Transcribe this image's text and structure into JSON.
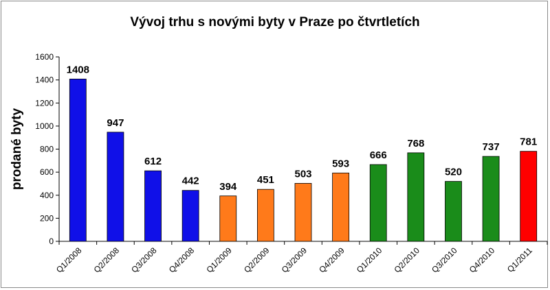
{
  "chart_data": {
    "type": "bar",
    "title": "Vývoj trhu s novými byty v Praze po čtvrtletích",
    "xlabel": "",
    "ylabel": "prodané byty",
    "ylim": [
      0,
      1600
    ],
    "yticks": [
      0,
      200,
      400,
      600,
      800,
      1000,
      1200,
      1400,
      1600
    ],
    "grid": false,
    "categories": [
      "Q1/2008",
      "Q2/2008",
      "Q3/2008",
      "Q4/2008",
      "Q1/2009",
      "Q2/2009",
      "Q3/2009",
      "Q4/2009",
      "Q1/2010",
      "Q2/2010",
      "Q3/2010",
      "Q4/2010",
      "Q1/2011"
    ],
    "values": [
      1408,
      947,
      612,
      442,
      394,
      451,
      503,
      593,
      666,
      768,
      520,
      737,
      781
    ],
    "bar_colors": [
      "#1010e8",
      "#1010e8",
      "#1010e8",
      "#1010e8",
      "#ff7a1a",
      "#ff7a1a",
      "#ff7a1a",
      "#ff7a1a",
      "#1a8c1a",
      "#1a8c1a",
      "#1a8c1a",
      "#1a8c1a",
      "#ff0000"
    ]
  }
}
